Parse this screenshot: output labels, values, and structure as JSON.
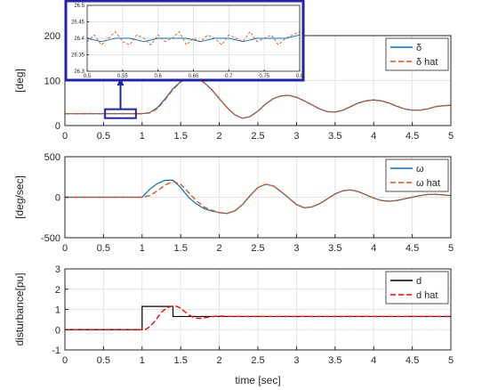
{
  "chart_data": [
    {
      "type": "line",
      "ylabel": "[deg]",
      "xlabel": "",
      "xlim": [
        0,
        5
      ],
      "ylim": [
        0,
        200
      ],
      "xticks": [
        "0",
        "0.5",
        "1",
        "1.5",
        "2",
        "2.5",
        "3",
        "3.5",
        "4",
        "4.5",
        "5"
      ],
      "yticks": [
        "0",
        "100",
        "200"
      ],
      "grid": true,
      "legend_position": "top-right",
      "series": [
        {
          "name": "δ",
          "color": "#0072bd",
          "style": "solid",
          "x": [
            0,
            1.0,
            1.1,
            1.2,
            1.3,
            1.4,
            1.5,
            1.6,
            1.7,
            1.8,
            1.9,
            2.0,
            2.1,
            2.2,
            2.3,
            2.4,
            2.5,
            2.6,
            2.7,
            2.8,
            2.9,
            3.0,
            3.1,
            3.2,
            3.3,
            3.4,
            3.5,
            3.6,
            3.7,
            3.8,
            3.9,
            4.0,
            4.1,
            4.2,
            4.3,
            4.4,
            4.5,
            4.6,
            4.7,
            4.8,
            4.9,
            5.0
          ],
          "y": [
            26.4,
            26.4,
            29,
            40,
            60,
            82,
            98,
            106,
            105,
            96,
            80,
            60,
            40,
            24,
            16,
            20,
            32,
            48,
            60,
            66,
            67,
            63,
            55,
            46,
            37,
            31,
            30,
            34,
            42,
            50,
            55,
            57,
            55,
            50,
            43,
            37,
            34,
            34,
            37,
            42,
            44,
            45
          ]
        },
        {
          "name": "δ hat",
          "color": "#d95319",
          "style": "dashed",
          "x": [
            0,
            1.0,
            1.1,
            1.2,
            1.3,
            1.4,
            1.5,
            1.6,
            1.7,
            1.8,
            1.9,
            2.0,
            2.1,
            2.2,
            2.3,
            2.4,
            2.5,
            2.6,
            2.7,
            2.8,
            2.9,
            3.0,
            3.1,
            3.2,
            3.3,
            3.4,
            3.5,
            3.6,
            3.7,
            3.8,
            3.9,
            4.0,
            4.1,
            4.2,
            4.3,
            4.4,
            4.5,
            4.6,
            4.7,
            4.8,
            4.9,
            5.0
          ],
          "y": [
            26.4,
            26.4,
            28,
            38,
            58,
            80,
            97,
            106,
            105,
            96,
            80,
            60,
            40,
            24,
            16,
            20,
            32,
            48,
            60,
            66,
            67,
            63,
            55,
            46,
            37,
            31,
            30,
            34,
            42,
            50,
            55,
            57,
            55,
            50,
            43,
            37,
            34,
            34,
            37,
            42,
            44,
            45
          ]
        }
      ]
    },
    {
      "type": "line",
      "ylabel": "[deg/sec]",
      "xlabel": "",
      "xlim": [
        0,
        5
      ],
      "ylim": [
        -500,
        500
      ],
      "xticks": [
        "0",
        "0.5",
        "1",
        "1.5",
        "2",
        "2.5",
        "3",
        "3.5",
        "4",
        "4.5",
        "5"
      ],
      "yticks": [
        "-500",
        "0",
        "500"
      ],
      "grid": true,
      "legend_position": "top-right",
      "series": [
        {
          "name": "ω",
          "color": "#0072bd",
          "style": "solid",
          "x": [
            0,
            1.0,
            1.1,
            1.2,
            1.3,
            1.4,
            1.5,
            1.6,
            1.7,
            1.8,
            1.9,
            2.0,
            2.1,
            2.2,
            2.3,
            2.4,
            2.5,
            2.6,
            2.7,
            2.8,
            2.9,
            3.0,
            3.1,
            3.2,
            3.3,
            3.4,
            3.5,
            3.6,
            3.7,
            3.8,
            3.9,
            4.0,
            4.1,
            4.2,
            4.3,
            4.4,
            4.5,
            4.6,
            4.7,
            4.8,
            4.9,
            5.0
          ],
          "y": [
            0,
            0,
            100,
            170,
            210,
            210,
            120,
            0,
            -80,
            -140,
            -170,
            -190,
            -200,
            -170,
            -90,
            20,
            120,
            160,
            140,
            70,
            -10,
            -90,
            -130,
            -120,
            -80,
            -20,
            40,
            80,
            90,
            70,
            30,
            -10,
            -40,
            -50,
            -40,
            -20,
            0,
            20,
            35,
            35,
            30,
            20
          ]
        },
        {
          "name": "ω hat",
          "color": "#d95319",
          "style": "dashed",
          "x": [
            0,
            1.0,
            1.1,
            1.2,
            1.3,
            1.4,
            1.5,
            1.6,
            1.7,
            1.8,
            1.9,
            2.0,
            2.1,
            2.2,
            2.3,
            2.4,
            2.5,
            2.6,
            2.7,
            2.8,
            2.9,
            3.0,
            3.1,
            3.2,
            3.3,
            3.4,
            3.5,
            3.6,
            3.7,
            3.8,
            3.9,
            4.0,
            4.1,
            4.2,
            4.3,
            4.4,
            4.5,
            4.6,
            4.7,
            4.8,
            4.9,
            5.0
          ],
          "y": [
            0,
            0,
            20,
            80,
            150,
            195,
            160,
            60,
            -40,
            -120,
            -160,
            -190,
            -200,
            -170,
            -90,
            20,
            120,
            160,
            140,
            70,
            -10,
            -90,
            -130,
            -120,
            -80,
            -20,
            40,
            80,
            90,
            70,
            30,
            -10,
            -40,
            -50,
            -40,
            -20,
            0,
            20,
            35,
            35,
            30,
            20
          ]
        }
      ]
    },
    {
      "type": "line",
      "ylabel": "disturbance[pu]",
      "xlabel": "time [sec]",
      "xlim": [
        0,
        5
      ],
      "ylim": [
        -1,
        3
      ],
      "xticks": [
        "0",
        "0.5",
        "1",
        "1.5",
        "2",
        "2.5",
        "3",
        "3.5",
        "4",
        "4.5",
        "5"
      ],
      "yticks": [
        "-1",
        "0",
        "1",
        "2",
        "3"
      ],
      "grid": true,
      "legend_position": "top-right",
      "series": [
        {
          "name": "d",
          "color": "#000000",
          "style": "solid",
          "x": [
            0,
            1.0,
            1.0,
            1.4,
            1.4,
            5.0
          ],
          "y": [
            0,
            0,
            1.15,
            1.15,
            0.65,
            0.65
          ]
        },
        {
          "name": "d hat",
          "color": "#ff0000",
          "style": "dashed",
          "x": [
            0,
            1.0,
            1.05,
            1.1,
            1.15,
            1.2,
            1.25,
            1.3,
            1.35,
            1.4,
            1.45,
            1.5,
            1.55,
            1.6,
            1.65,
            1.7,
            1.75,
            1.8,
            1.85,
            1.9,
            1.95,
            2.0,
            2.1,
            2.2,
            2.3,
            2.5,
            3.0,
            4.0,
            5.0
          ],
          "y": [
            0,
            0,
            0.02,
            0.15,
            0.35,
            0.6,
            0.85,
            1.02,
            1.12,
            1.17,
            1.15,
            1.05,
            0.9,
            0.75,
            0.63,
            0.57,
            0.56,
            0.58,
            0.61,
            0.64,
            0.66,
            0.67,
            0.66,
            0.65,
            0.65,
            0.65,
            0.65,
            0.65,
            0.65
          ]
        }
      ]
    },
    {
      "type": "line",
      "role": "inset zoom of top panel",
      "xlim": [
        0.5,
        0.8
      ],
      "ylim": [
        26.3,
        26.5
      ],
      "xticks": [
        "0.5",
        "0.55",
        "0.6",
        "0.65",
        "0.7",
        "0.75",
        "0.8"
      ],
      "yticks": [
        "26.3",
        "26.35",
        "26.4",
        "26.45",
        "26.5"
      ],
      "grid": true,
      "series": [
        {
          "name": "δ",
          "color": "#0072bd",
          "style": "solid",
          "x": [
            0.5,
            0.52,
            0.54,
            0.56,
            0.58,
            0.6,
            0.62,
            0.64,
            0.66,
            0.68,
            0.7,
            0.72,
            0.74,
            0.76,
            0.78,
            0.8
          ],
          "y": [
            26.4,
            26.39,
            26.4,
            26.4,
            26.39,
            26.4,
            26.4,
            26.4,
            26.39,
            26.4,
            26.4,
            26.39,
            26.4,
            26.4,
            26.4,
            26.41
          ]
        },
        {
          "name": "δ hat",
          "color": "#d95319",
          "style": "dashed",
          "x": [
            0.5,
            0.51,
            0.52,
            0.53,
            0.54,
            0.55,
            0.56,
            0.57,
            0.58,
            0.59,
            0.6,
            0.61,
            0.62,
            0.63,
            0.64,
            0.65,
            0.66,
            0.67,
            0.68,
            0.69,
            0.7,
            0.71,
            0.72,
            0.73,
            0.74,
            0.75,
            0.76,
            0.77,
            0.78,
            0.79,
            0.8
          ],
          "y": [
            26.39,
            26.41,
            26.38,
            26.4,
            26.42,
            26.39,
            26.38,
            26.41,
            26.4,
            26.38,
            26.41,
            26.39,
            26.4,
            26.42,
            26.38,
            26.4,
            26.39,
            26.41,
            26.4,
            26.38,
            26.41,
            26.4,
            26.39,
            26.42,
            26.39,
            26.4,
            26.41,
            26.38,
            26.4,
            26.41,
            26.42
          ]
        }
      ]
    }
  ],
  "colors": {
    "zoom_box": "#2222aa",
    "axes": "#262626",
    "grid": "#e3e3e3"
  }
}
